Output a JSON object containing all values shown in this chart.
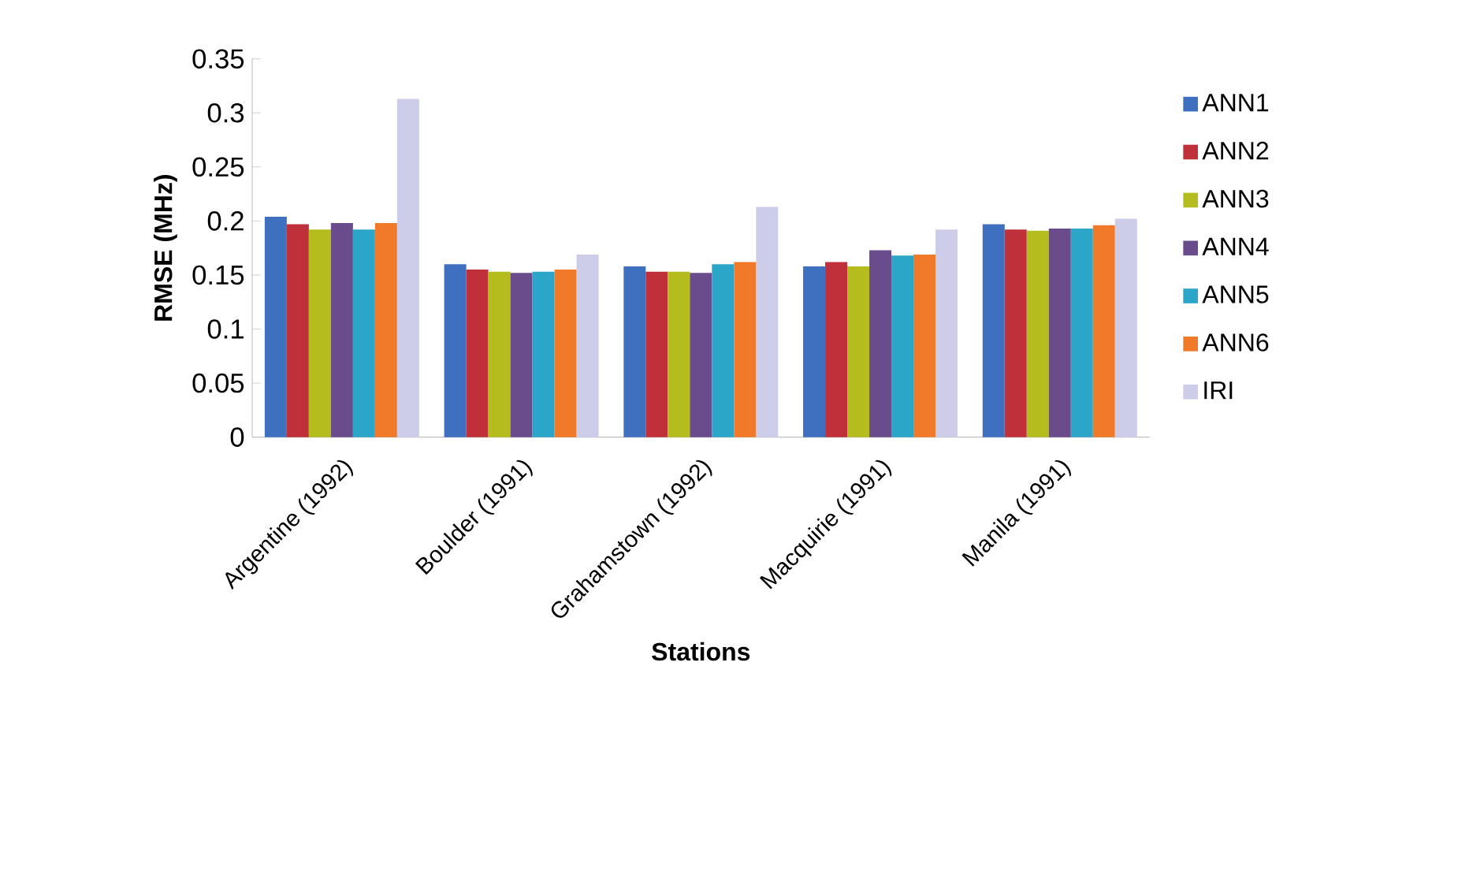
{
  "chart_data": {
    "type": "bar",
    "xlabel": "Stations",
    "ylabel": "RMSE (MHz)",
    "categories": [
      "Argentine (1992)",
      "Boulder (1991)",
      "Grahamstown (1992)",
      "Macquirie (1991)",
      "Manila (1991)"
    ],
    "series": [
      {
        "name": "ANN1",
        "color": "#3f6fbf",
        "values": [
          0.204,
          0.16,
          0.158,
          0.158,
          0.197
        ]
      },
      {
        "name": "ANN2",
        "color": "#c0303a",
        "values": [
          0.197,
          0.155,
          0.153,
          0.162,
          0.192
        ]
      },
      {
        "name": "ANN3",
        "color": "#b5bd1e",
        "values": [
          0.192,
          0.153,
          0.153,
          0.158,
          0.191
        ]
      },
      {
        "name": "ANN4",
        "color": "#6a4c8c",
        "values": [
          0.198,
          0.152,
          0.152,
          0.173,
          0.193
        ]
      },
      {
        "name": "ANN5",
        "color": "#2ba5c8",
        "values": [
          0.192,
          0.153,
          0.16,
          0.168,
          0.193
        ]
      },
      {
        "name": "ANN6",
        "color": "#f07a2a",
        "values": [
          0.198,
          0.155,
          0.162,
          0.169,
          0.196
        ]
      },
      {
        "name": "IRI",
        "color": "#cdcdea",
        "values": [
          0.313,
          0.169,
          0.213,
          0.192,
          0.202
        ]
      }
    ],
    "ylim": [
      0,
      0.35
    ],
    "yticks": [
      0,
      0.05,
      0.1,
      0.15,
      0.2,
      0.25,
      0.3,
      0.35
    ],
    "grid": false,
    "legend": "right"
  }
}
